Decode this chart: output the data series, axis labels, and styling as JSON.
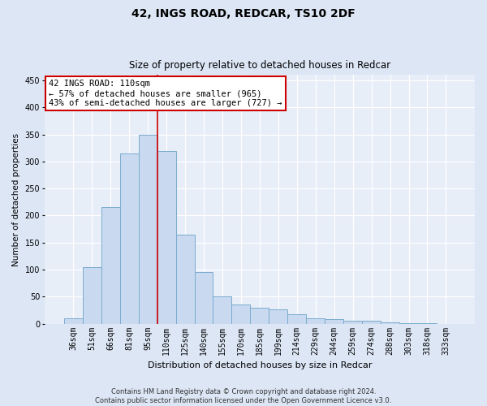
{
  "title_line1": "42, INGS ROAD, REDCAR, TS10 2DF",
  "title_line2": "Size of property relative to detached houses in Redcar",
  "xlabel": "Distribution of detached houses by size in Redcar",
  "ylabel": "Number of detached properties",
  "footer_line1": "Contains HM Land Registry data © Crown copyright and database right 2024.",
  "footer_line2": "Contains public sector information licensed under the Open Government Licence v3.0.",
  "annotation_line1": "42 INGS ROAD: 110sqm",
  "annotation_line2": "← 57% of detached houses are smaller (965)",
  "annotation_line3": "43% of semi-detached houses are larger (727) →",
  "bar_labels": [
    "36sqm",
    "51sqm",
    "66sqm",
    "81sqm",
    "95sqm",
    "110sqm",
    "125sqm",
    "140sqm",
    "155sqm",
    "170sqm",
    "185sqm",
    "199sqm",
    "214sqm",
    "229sqm",
    "244sqm",
    "259sqm",
    "274sqm",
    "288sqm",
    "303sqm",
    "318sqm",
    "333sqm"
  ],
  "bar_values": [
    10,
    105,
    215,
    315,
    350,
    320,
    165,
    95,
    50,
    35,
    30,
    27,
    18,
    10,
    8,
    5,
    5,
    2,
    1,
    1,
    0
  ],
  "bar_color": "#c9daf0",
  "bar_edge_color": "#7aabce",
  "vline_x_index": 5,
  "vline_color": "#cc0000",
  "ylim": [
    0,
    460
  ],
  "yticks": [
    0,
    50,
    100,
    150,
    200,
    250,
    300,
    350,
    400,
    450
  ],
  "bg_color": "#dce6f5",
  "plot_bg_color": "#e8eef8",
  "annotation_box_color": "#ffffff",
  "annotation_box_edge": "#cc0000",
  "annotation_fontsize": 7.5,
  "title1_fontsize": 10,
  "title2_fontsize": 8.5,
  "xlabel_fontsize": 8,
  "ylabel_fontsize": 7.5,
  "tick_fontsize": 7,
  "footer_fontsize": 6
}
